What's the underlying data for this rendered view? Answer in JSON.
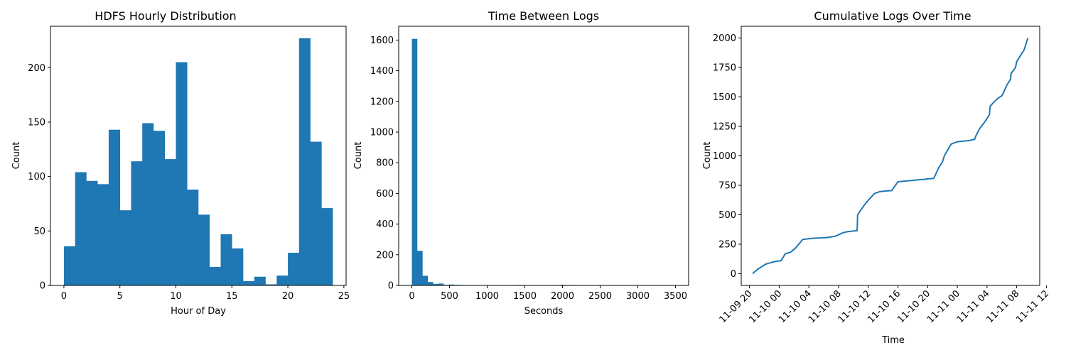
{
  "chart_data": [
    {
      "type": "bar",
      "title": "HDFS Hourly Distribution",
      "xlabel": "Hour of Day",
      "ylabel": "Count",
      "color": "#1f77b4",
      "bin_edges": [
        0,
        1,
        2,
        3,
        4,
        5,
        6,
        7,
        8,
        9,
        10,
        11,
        12,
        13,
        14,
        15,
        16,
        17,
        18,
        19,
        20,
        21,
        22,
        23,
        24
      ],
      "values": [
        36,
        104,
        96,
        93,
        143,
        69,
        114,
        149,
        142,
        116,
        205,
        88,
        65,
        17,
        47,
        34,
        4,
        8,
        1,
        9,
        30,
        227,
        132,
        71
      ],
      "xlim": [
        -1.2,
        25.2
      ],
      "ylim": [
        0,
        238
      ],
      "xticks": [
        0,
        5,
        10,
        15,
        20,
        25
      ],
      "yticks": [
        0,
        50,
        100,
        150,
        200
      ],
      "grid": false
    },
    {
      "type": "bar",
      "title": "Time Between Logs",
      "xlabel": "Seconds",
      "ylabel": "Count",
      "color": "#1f77b4",
      "bin_width": 70,
      "values": [
        1608,
        226,
        63,
        22,
        10,
        12,
        4,
        6,
        4,
        3,
        2,
        1,
        1,
        1,
        2,
        2,
        1,
        2,
        1,
        0,
        3,
        2,
        1,
        2,
        0,
        0,
        0,
        1,
        4,
        3
      ],
      "xlim": [
        -175,
        3675
      ],
      "ylim": [
        0,
        1690
      ],
      "xticks": [
        0,
        500,
        1000,
        1500,
        2000,
        2500,
        3000,
        3500
      ],
      "yticks": [
        0,
        200,
        400,
        600,
        800,
        1000,
        1200,
        1400,
        1600
      ],
      "grid": false
    },
    {
      "type": "line",
      "title": "Cumulative Logs Over Time",
      "xlabel": "Time",
      "ylabel": "Count",
      "color": "#1f77b4",
      "x": [
        "2008-11-09 20:25",
        "2008-11-09 21:10",
        "2008-11-09 22:10",
        "2008-11-09 23:00",
        "2008-11-09 23:35",
        "2008-11-10 00:15",
        "2008-11-10 00:50",
        "2008-11-10 01:30",
        "2008-11-10 02:10",
        "2008-11-10 03:10",
        "2008-11-10 04:30",
        "2008-11-10 06:10",
        "2008-11-10 06:50",
        "2008-11-10 07:40",
        "2008-11-10 08:00",
        "2008-11-10 08:30",
        "2008-11-10 09:05",
        "2008-11-10 09:40",
        "2008-11-10 10:30",
        "2008-11-10 10:34",
        "2008-11-10 11:00",
        "2008-11-10 11:40",
        "2008-11-10 12:50",
        "2008-11-10 13:30",
        "2008-11-10 14:05",
        "2008-11-10 15:10",
        "2008-11-10 16:00",
        "2008-11-10 17:50",
        "2008-11-10 18:30",
        "2008-11-10 19:30",
        "2008-11-10 20:00",
        "2008-11-10 20:45",
        "2008-11-10 20:50",
        "2008-11-10 21:30",
        "2008-11-10 22:00",
        "2008-11-10 22:15",
        "2008-11-10 23:10",
        "2008-11-11 00:00",
        "2008-11-11 01:40",
        "2008-11-11 02:20",
        "2008-11-11 02:30",
        "2008-11-11 03:00",
        "2008-11-11 03:50",
        "2008-11-11 04:20",
        "2008-11-11 04:25",
        "2008-11-11 04:50",
        "2008-11-11 05:30",
        "2008-11-11 06:00",
        "2008-11-11 06:10",
        "2008-11-11 06:40",
        "2008-11-11 07:10",
        "2008-11-11 07:15",
        "2008-11-11 07:50",
        "2008-11-11 08:00",
        "2008-11-11 08:30",
        "2008-11-11 09:00",
        "2008-11-11 09:30"
      ],
      "y": [
        0,
        40,
        80,
        95,
        105,
        110,
        170,
        180,
        215,
        290,
        300,
        305,
        310,
        320,
        330,
        345,
        355,
        360,
        365,
        500,
        540,
        600,
        680,
        695,
        700,
        705,
        780,
        790,
        795,
        800,
        805,
        808,
        810,
        900,
        950,
        1000,
        1100,
        1120,
        1130,
        1140,
        1170,
        1230,
        1300,
        1350,
        1420,
        1450,
        1490,
        1510,
        1530,
        1600,
        1650,
        1700,
        1750,
        1800,
        1850,
        1900,
        2000
      ],
      "xlim": [
        "2008-11-09 18:53",
        "2008-11-11 11:06"
      ],
      "ylim": [
        -100,
        2100
      ],
      "xticks": [
        "2008-11-09 20:00",
        "2008-11-10 00:00",
        "2008-11-10 04:00",
        "2008-11-10 08:00",
        "2008-11-10 12:00",
        "2008-11-10 16:00",
        "2008-11-10 20:00",
        "2008-11-11 00:00",
        "2008-11-11 04:00",
        "2008-11-11 08:00",
        "2008-11-11 12:00"
      ],
      "xtick_labels": [
        "11-09 20",
        "11-10 00",
        "11-10 04",
        "11-10 08",
        "11-10 12",
        "11-10 16",
        "11-10 20",
        "11-11 00",
        "11-11 04",
        "11-11 08",
        "11-11 12"
      ],
      "yticks": [
        0,
        250,
        500,
        750,
        1000,
        1250,
        1500,
        1750,
        2000
      ],
      "grid": false
    }
  ]
}
